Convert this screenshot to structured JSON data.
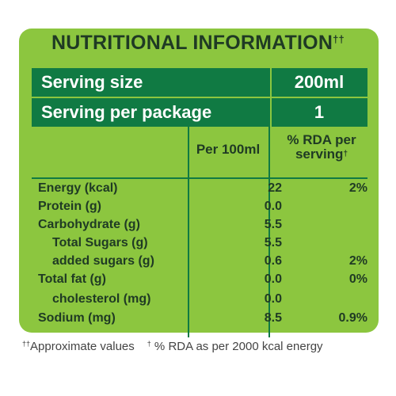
{
  "title": "NUTRITIONAL INFORMATION",
  "title_mark": "††",
  "serving_size": {
    "label": "Serving size",
    "value": "200ml"
  },
  "serving_per_package": {
    "label": "Serving per package",
    "value": "1"
  },
  "columns": {
    "per100": "Per 100ml",
    "rda_line1": "% RDA per",
    "rda_line2": "serving",
    "rda_mark": "†"
  },
  "rows": [
    {
      "name": "Energy (kcal)",
      "per": "22",
      "rda": "2%"
    },
    {
      "name": "Protein (g)",
      "per": "0.0",
      "rda": ""
    },
    {
      "name": "Carbohydrate (g)",
      "per": "5.5",
      "rda": ""
    },
    {
      "name": "Total Sugars (g)",
      "per": "5.5",
      "rda": ""
    },
    {
      "name": "added sugars (g)",
      "per": "0.6",
      "rda": "2%"
    },
    {
      "name": "Total fat (g)",
      "per": "0.0",
      "rda": "0%"
    },
    {
      "name": "cholesterol (mg)",
      "per": "0.0",
      "rda": ""
    },
    {
      "name": "Sodium (mg)",
      "per": "8.5",
      "rda": "0.9%"
    }
  ],
  "footer": {
    "mark1": "††",
    "note1": "Approximate values",
    "mark2": "†",
    "note2": " % RDA as per 2000 kcal energy"
  },
  "colors": {
    "panel": "#8cc63f",
    "band": "#107a43",
    "text": "#1f3a24"
  }
}
